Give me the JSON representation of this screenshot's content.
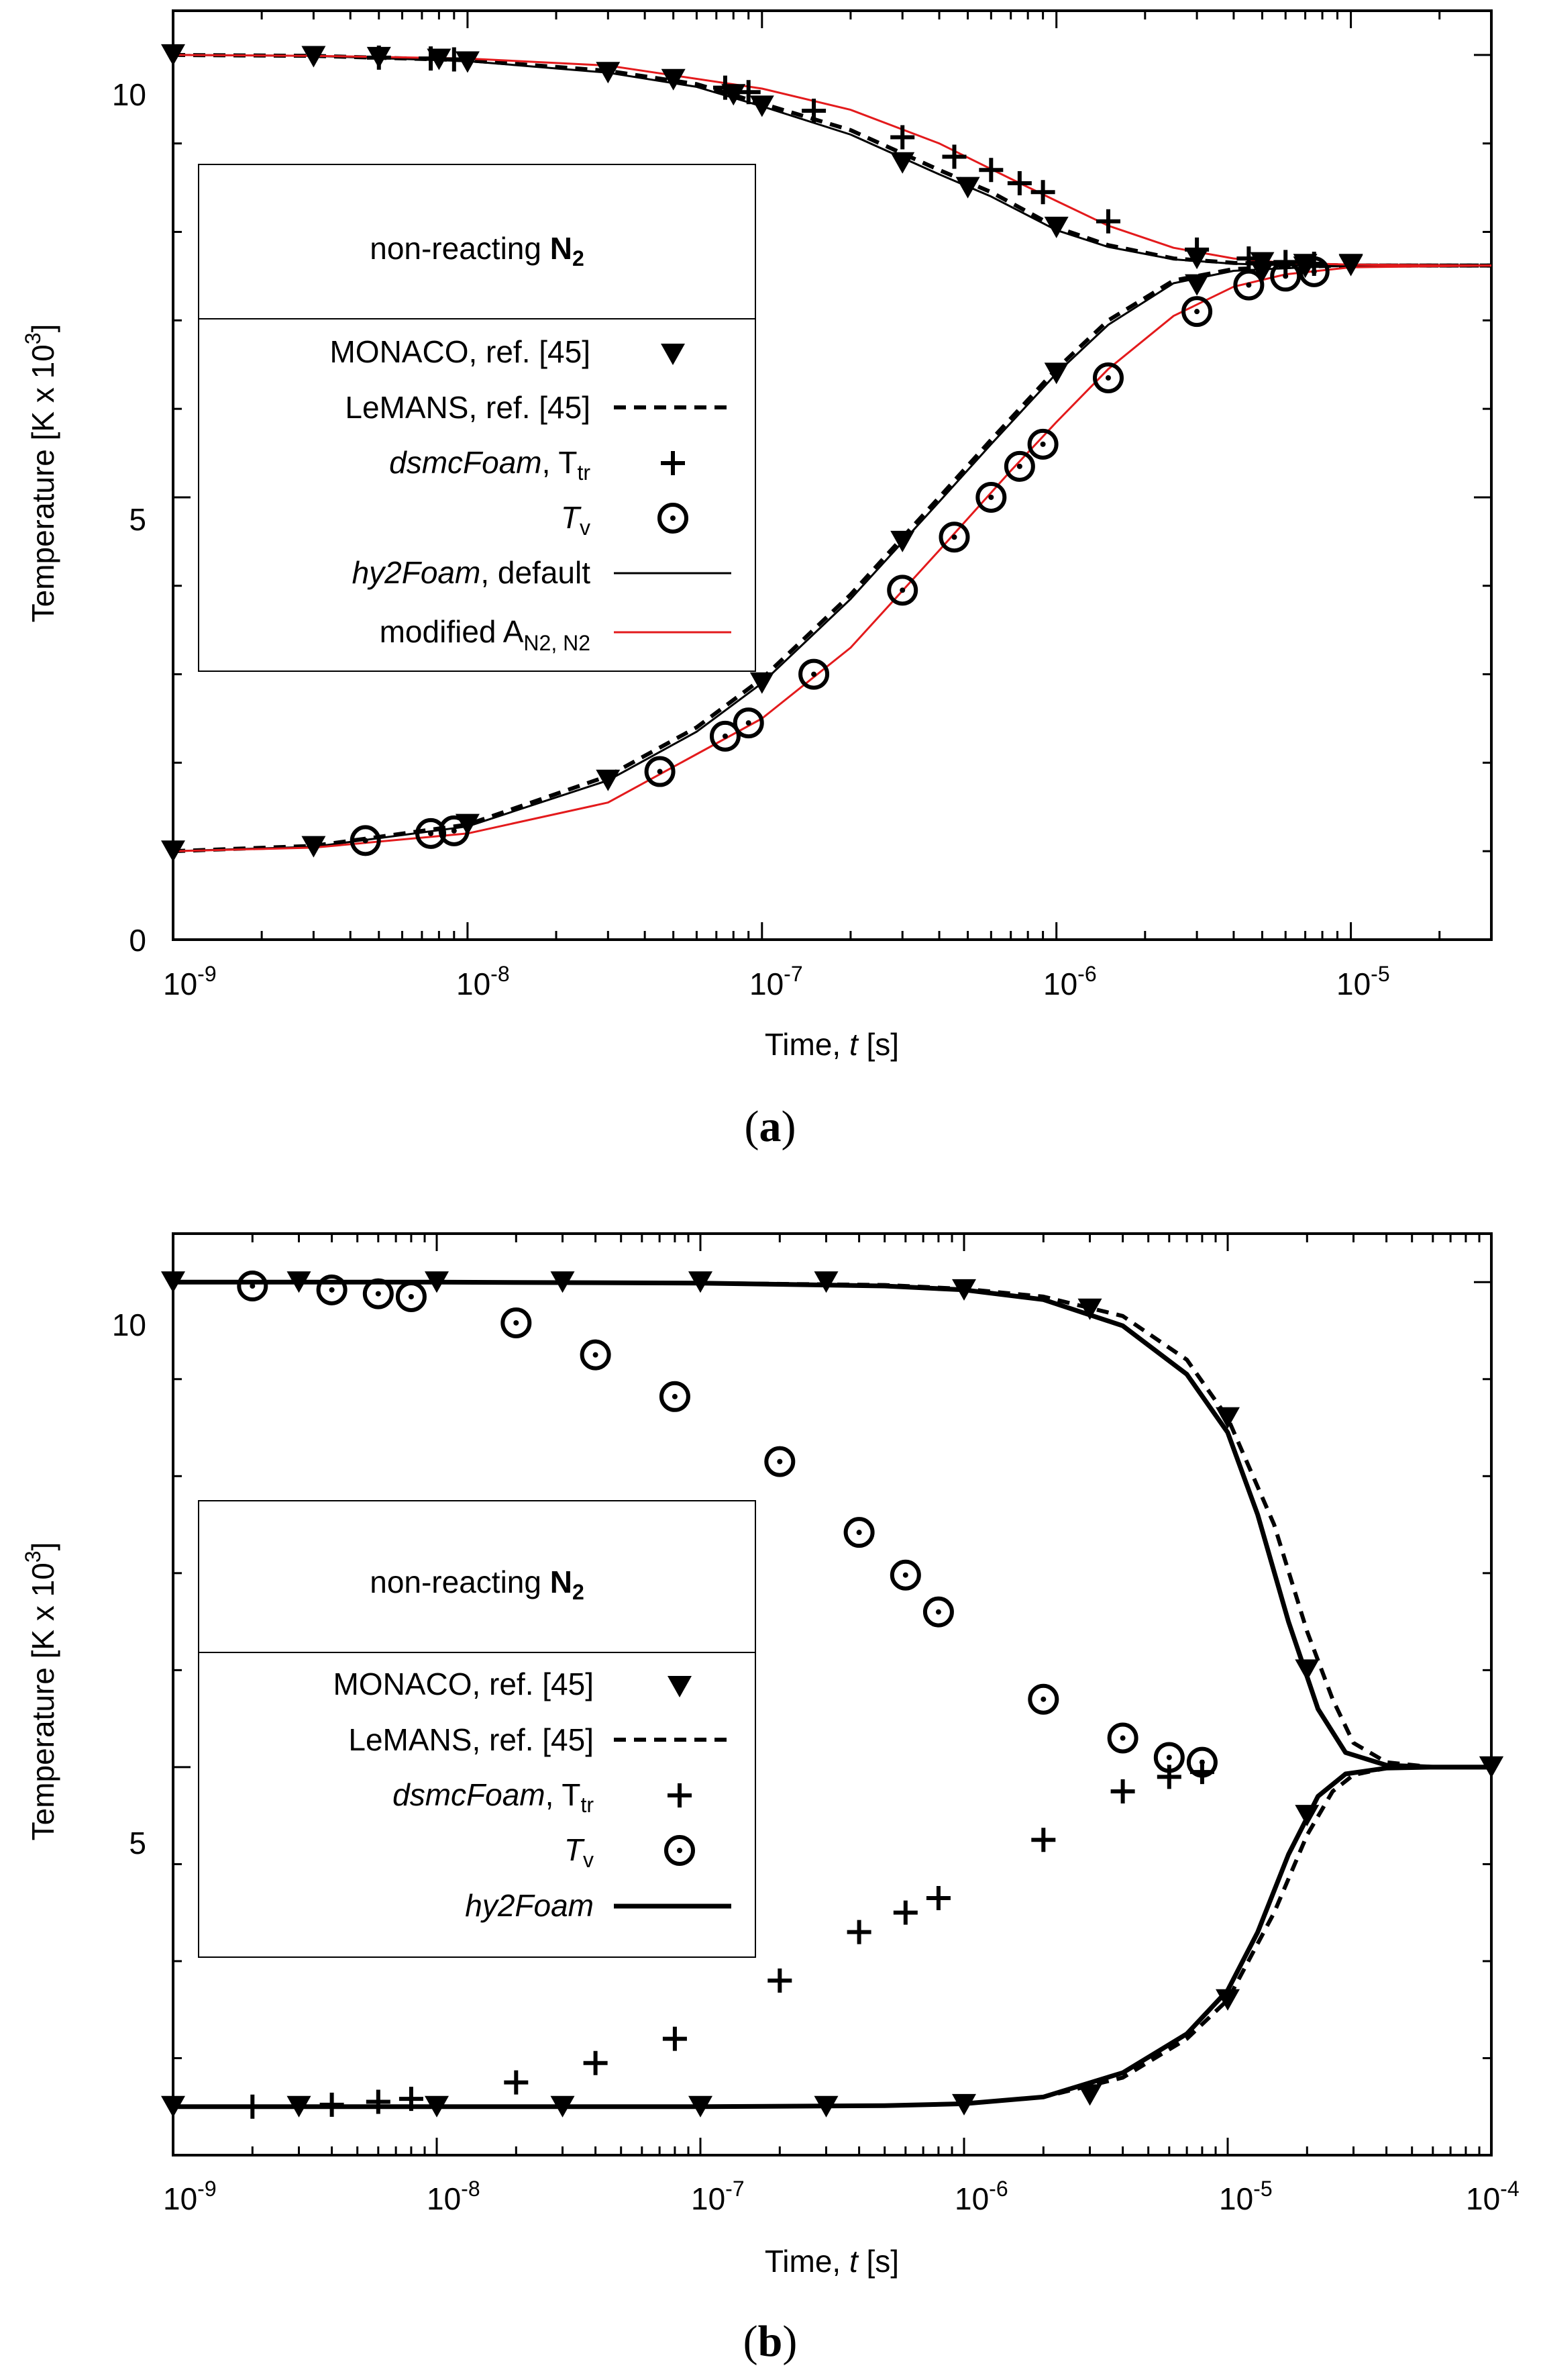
{
  "charts": [
    {
      "type": "line",
      "caption_letter": "a",
      "xlabel": "Time,",
      "xlabel_var": "t",
      "xlabel_unit": "[s]",
      "ylabel": "Temperature",
      "ylabel_unit": "[K x 10",
      "ylabel_unit_exp": "3",
      "ylabel_unit_close": "]",
      "xscale": "log",
      "xlim": [
        1e-09,
        3e-05
      ],
      "ylim": [
        0,
        10.5
      ],
      "x_ticks": [
        {
          "base": "10",
          "exp": "-9",
          "value": 1e-09
        },
        {
          "base": "10",
          "exp": "-8",
          "value": 1e-08
        },
        {
          "base": "10",
          "exp": "-7",
          "value": 1e-07
        },
        {
          "base": "10",
          "exp": "-6",
          "value": 1e-06
        },
        {
          "base": "10",
          "exp": "-5",
          "value": 1e-05
        }
      ],
      "y_ticks": [
        {
          "label": "0",
          "value": 0
        },
        {
          "label": "5",
          "value": 5
        },
        {
          "label": "10",
          "value": 10
        }
      ],
      "legend": {
        "title": "non-reacting",
        "title_species": "N",
        "title_species_sub": "2",
        "entries": [
          {
            "label": "MONACO, ref. [45]",
            "marker": "triangle-down"
          },
          {
            "label": "LeMANS, ref. [45]",
            "line": "dashed",
            "color": "#000000"
          },
          {
            "label_italic": "dsmcFoam",
            "label": ", T",
            "label_sub": "tr",
            "marker": "plus"
          },
          {
            "label_italic": "T",
            "label_sub": "v",
            "marker": "circle-dot"
          },
          {
            "label_italic": "hy2Foam",
            "label": ", default",
            "line": "solid",
            "color": "#000000"
          },
          {
            "label": "modified A",
            "label_sub": "N2, N2",
            "line": "solid",
            "color": "#e31a1c"
          }
        ]
      },
      "series": [
        {
          "name": "MONACO Ttr",
          "marker": "triangle-down",
          "x": [
            1e-09,
            3e-09,
            5e-09,
            8e-09,
            1e-08,
            3e-08,
            5e-08,
            8e-08,
            1e-07,
            3e-07,
            5e-07,
            1e-06,
            3e-06,
            5e-06,
            7e-06,
            1e-05
          ],
          "y": [
            10.0,
            9.98,
            9.97,
            9.95,
            9.92,
            9.8,
            9.72,
            9.55,
            9.42,
            8.78,
            8.5,
            8.05,
            7.7,
            7.65,
            7.63,
            7.63
          ]
        },
        {
          "name": "MONACO Tv",
          "marker": "triangle-down",
          "x": [
            1e-09,
            3e-09,
            1e-08,
            3e-08,
            1e-07,
            3e-07,
            1e-06,
            3e-06,
            5e-06,
            7e-06,
            1e-05
          ],
          "y": [
            1.0,
            1.05,
            1.3,
            1.8,
            2.9,
            4.5,
            6.4,
            7.4,
            7.55,
            7.6,
            7.62
          ]
        },
        {
          "name": "dsmcFoam Ttr",
          "marker": "plus",
          "x": [
            5e-09,
            7.5e-09,
            9e-09,
            7.5e-08,
            9e-08,
            1.5e-07,
            3e-07,
            4.5e-07,
            6e-07,
            7.5e-07,
            9e-07,
            1.5e-06,
            3e-06,
            4.5e-06,
            6e-06,
            7.5e-06
          ],
          "y": [
            9.97,
            9.96,
            9.95,
            9.63,
            9.58,
            9.37,
            9.07,
            8.85,
            8.7,
            8.55,
            8.45,
            8.12,
            7.8,
            7.7,
            7.66,
            7.64
          ]
        },
        {
          "name": "dsmcFoam Tv",
          "marker": "circle-dot",
          "x": [
            4.5e-09,
            7.5e-09,
            9e-09,
            4.5e-08,
            7.5e-08,
            9e-08,
            1.5e-07,
            3e-07,
            4.5e-07,
            6e-07,
            7.5e-07,
            9e-07,
            1.5e-06,
            3e-06,
            4.5e-06,
            6e-06,
            7.5e-06
          ],
          "y": [
            1.12,
            1.2,
            1.23,
            1.9,
            2.3,
            2.45,
            3.0,
            3.95,
            4.55,
            5.0,
            5.35,
            5.6,
            6.35,
            7.1,
            7.4,
            7.5,
            7.55
          ]
        },
        {
          "name": "LeMANS Ttr",
          "line": "dashed",
          "color": "#000000",
          "x": [
            1e-09,
            3e-09,
            1e-08,
            3e-08,
            6e-08,
            1e-07,
            2e-07,
            4e-07,
            6e-07,
            1e-06,
            1.5e-06,
            2.5e-06,
            4e-06,
            7e-06,
            1e-05,
            3e-05
          ],
          "y": [
            10.0,
            9.99,
            9.94,
            9.82,
            9.67,
            9.45,
            9.15,
            8.7,
            8.45,
            8.05,
            7.85,
            7.7,
            7.65,
            7.63,
            7.62,
            7.62
          ]
        },
        {
          "name": "LeMANS Tv",
          "line": "dashed",
          "color": "#000000",
          "x": [
            1e-09,
            3e-09,
            1e-08,
            3e-08,
            6e-08,
            1e-07,
            2e-07,
            4e-07,
            6e-07,
            1e-06,
            1.5e-06,
            2.5e-06,
            4e-06,
            7e-06,
            1e-05,
            3e-05
          ],
          "y": [
            1.0,
            1.06,
            1.3,
            1.85,
            2.4,
            2.95,
            3.9,
            5.0,
            5.65,
            6.45,
            7.0,
            7.45,
            7.58,
            7.61,
            7.62,
            7.62
          ]
        },
        {
          "name": "hy2Foam default Ttr",
          "line": "solid",
          "color": "#000000",
          "x": [
            1e-09,
            3e-09,
            1e-08,
            3e-08,
            6e-08,
            1e-07,
            2e-07,
            4e-07,
            6e-07,
            1e-06,
            1.5e-06,
            2.5e-06,
            4e-06,
            7e-06,
            1e-05,
            3e-05
          ],
          "y": [
            10.0,
            9.99,
            9.93,
            9.8,
            9.64,
            9.42,
            9.1,
            8.65,
            8.4,
            8.02,
            7.83,
            7.69,
            7.64,
            7.62,
            7.62,
            7.62
          ]
        },
        {
          "name": "hy2Foam default Tv",
          "line": "solid",
          "color": "#000000",
          "x": [
            1e-09,
            3e-09,
            1e-08,
            3e-08,
            6e-08,
            1e-07,
            2e-07,
            4e-07,
            6e-07,
            1e-06,
            1.5e-06,
            2.5e-06,
            4e-06,
            7e-06,
            1e-05,
            3e-05
          ],
          "y": [
            1.0,
            1.05,
            1.28,
            1.8,
            2.35,
            2.9,
            3.85,
            4.95,
            5.6,
            6.4,
            6.95,
            7.42,
            7.56,
            7.6,
            7.62,
            7.62
          ]
        },
        {
          "name": "modified A Ttr",
          "line": "solid",
          "color": "#e31a1c",
          "x": [
            1e-09,
            3e-09,
            1e-08,
            3e-08,
            1e-07,
            2e-07,
            4e-07,
            7e-07,
            1e-06,
            1.5e-06,
            2.5e-06,
            4e-06,
            6e-06,
            1e-05,
            3e-05
          ],
          "y": [
            10.0,
            9.99,
            9.96,
            9.88,
            9.62,
            9.38,
            9.0,
            8.6,
            8.35,
            8.07,
            7.82,
            7.7,
            7.65,
            7.63,
            7.62
          ]
        },
        {
          "name": "modified A Tv",
          "line": "solid",
          "color": "#e31a1c",
          "x": [
            1e-09,
            3e-09,
            1e-08,
            3e-08,
            1e-07,
            2e-07,
            4e-07,
            7e-07,
            1e-06,
            1.5e-06,
            2.5e-06,
            4e-06,
            6e-06,
            1e-05,
            3e-05
          ],
          "y": [
            1.0,
            1.04,
            1.2,
            1.55,
            2.5,
            3.3,
            4.4,
            5.3,
            5.85,
            6.45,
            7.05,
            7.38,
            7.52,
            7.6,
            7.62
          ]
        }
      ]
    },
    {
      "type": "line",
      "caption_letter": "b",
      "xlabel": "Time,",
      "xlabel_var": "t",
      "xlabel_unit": "[s]",
      "ylabel": "Temperature",
      "ylabel_unit": "[K x 10",
      "ylabel_unit_exp": "3",
      "ylabel_unit_close": "]",
      "xscale": "log",
      "xlim": [
        1e-09,
        0.0001
      ],
      "ylim": [
        1.0,
        10.5
      ],
      "x_ticks": [
        {
          "base": "10",
          "exp": "-9",
          "value": 1e-09
        },
        {
          "base": "10",
          "exp": "-8",
          "value": 1e-08
        },
        {
          "base": "10",
          "exp": "-7",
          "value": 1e-07
        },
        {
          "base": "10",
          "exp": "-6",
          "value": 1e-06
        },
        {
          "base": "10",
          "exp": "-5",
          "value": 1e-05
        },
        {
          "base": "10",
          "exp": "-4",
          "value": 0.0001
        }
      ],
      "y_ticks": [
        {
          "label": "5",
          "value": 5
        },
        {
          "label": "10",
          "value": 10
        }
      ],
      "legend": {
        "title": "non-reacting",
        "title_species": "N",
        "title_species_sub": "2",
        "entries": [
          {
            "label": "MONACO, ref. [45]",
            "marker": "triangle-down"
          },
          {
            "label": "LeMANS, ref. [45]",
            "line": "dashed",
            "color": "#000000"
          },
          {
            "label_italic": "dsmcFoam",
            "label": ", T",
            "label_sub": "tr",
            "marker": "plus"
          },
          {
            "label_italic": "T",
            "label_sub": "v",
            "marker": "circle-dot"
          },
          {
            "label_italic": "hy2Foam",
            "label": "",
            "line": "solid-thick",
            "color": "#000000"
          }
        ]
      },
      "series": [
        {
          "name": "MONACO Ttr",
          "marker": "triangle-down",
          "x": [
            1e-09,
            3e-09,
            1e-08,
            3e-08,
            1e-07,
            3e-07,
            1e-06,
            3e-06,
            1e-05,
            2e-05,
            0.0001
          ],
          "y": [
            10.0,
            10.0,
            10.0,
            10.0,
            10.0,
            10.0,
            9.92,
            9.72,
            8.6,
            6.0,
            5.0
          ]
        },
        {
          "name": "MONACO Tv",
          "marker": "triangle-down",
          "x": [
            1e-09,
            3e-09,
            1e-08,
            3e-08,
            1e-07,
            3e-07,
            1e-06,
            3e-06,
            1e-05,
            2e-05,
            0.0001
          ],
          "y": [
            1.5,
            1.5,
            1.5,
            1.5,
            1.5,
            1.5,
            1.52,
            1.62,
            2.6,
            4.5,
            5.0
          ]
        },
        {
          "name": "dsmcFoam Tv",
          "marker": "circle-dot",
          "x": [
            2e-09,
            4e-09,
            6e-09,
            8e-09,
            2e-08,
            4e-08,
            8e-08,
            2e-07,
            4e-07,
            6e-07,
            8e-07,
            2e-06,
            4e-06,
            6e-06,
            8e-06
          ],
          "y": [
            9.96,
            9.92,
            9.88,
            9.85,
            9.58,
            9.25,
            8.82,
            8.15,
            7.42,
            6.98,
            6.6,
            5.7,
            5.3,
            5.1,
            5.05
          ]
        },
        {
          "name": "dsmcFoam Ttr",
          "marker": "plus",
          "x": [
            2e-09,
            4e-09,
            6e-09,
            8e-09,
            2e-08,
            4e-08,
            8e-08,
            2e-07,
            4e-07,
            6e-07,
            8e-07,
            2e-06,
            4e-06,
            6e-06,
            8e-06
          ],
          "y": [
            1.5,
            1.52,
            1.55,
            1.58,
            1.75,
            1.95,
            2.2,
            2.8,
            3.3,
            3.5,
            3.65,
            4.25,
            4.75,
            4.9,
            4.95
          ]
        },
        {
          "name": "LeMANS Ttr",
          "line": "dashed",
          "color": "#000000",
          "x": [
            1e-09,
            1e-08,
            1e-07,
            5e-07,
            1e-06,
            2e-06,
            4e-06,
            7e-06,
            1e-05,
            1.5e-05,
            2e-05,
            2.5e-05,
            3e-05,
            4e-05,
            6e-05,
            0.0001
          ],
          "y": [
            10.0,
            10.0,
            9.99,
            9.97,
            9.93,
            9.85,
            9.65,
            9.2,
            8.6,
            7.5,
            6.4,
            5.7,
            5.25,
            5.05,
            5.0,
            5.0
          ]
        },
        {
          "name": "LeMANS Tv",
          "line": "dashed",
          "color": "#000000",
          "x": [
            1e-09,
            1e-08,
            1e-07,
            5e-07,
            1e-06,
            2e-06,
            4e-06,
            7e-06,
            1e-05,
            1.5e-05,
            2e-05,
            2.5e-05,
            3e-05,
            4e-05,
            6e-05,
            0.0001
          ],
          "y": [
            1.5,
            1.5,
            1.5,
            1.51,
            1.53,
            1.6,
            1.8,
            2.2,
            2.6,
            3.5,
            4.3,
            4.75,
            4.92,
            4.99,
            5.0,
            5.0
          ]
        },
        {
          "name": "hy2Foam Ttr",
          "line": "solid",
          "color": "#000000",
          "x": [
            1e-09,
            1e-08,
            1e-07,
            5e-07,
            1e-06,
            2e-06,
            4e-06,
            7e-06,
            1e-05,
            1.3e-05,
            1.7e-05,
            2.2e-05,
            2.8e-05,
            4e-05,
            6e-05,
            0.0001
          ],
          "y": [
            10.0,
            10.0,
            9.99,
            9.96,
            9.92,
            9.82,
            9.55,
            9.05,
            8.45,
            7.6,
            6.5,
            5.6,
            5.15,
            5.02,
            5.0,
            5.0
          ]
        },
        {
          "name": "hy2Foam Tv",
          "line": "solid",
          "color": "#000000",
          "x": [
            1e-09,
            1e-08,
            1e-07,
            5e-07,
            1e-06,
            2e-06,
            4e-06,
            7e-06,
            1e-05,
            1.3e-05,
            1.7e-05,
            2.2e-05,
            2.8e-05,
            4e-05,
            6e-05,
            0.0001
          ],
          "y": [
            1.5,
            1.5,
            1.5,
            1.51,
            1.53,
            1.6,
            1.85,
            2.25,
            2.7,
            3.3,
            4.1,
            4.7,
            4.93,
            4.99,
            5.0,
            5.0
          ]
        }
      ]
    }
  ]
}
